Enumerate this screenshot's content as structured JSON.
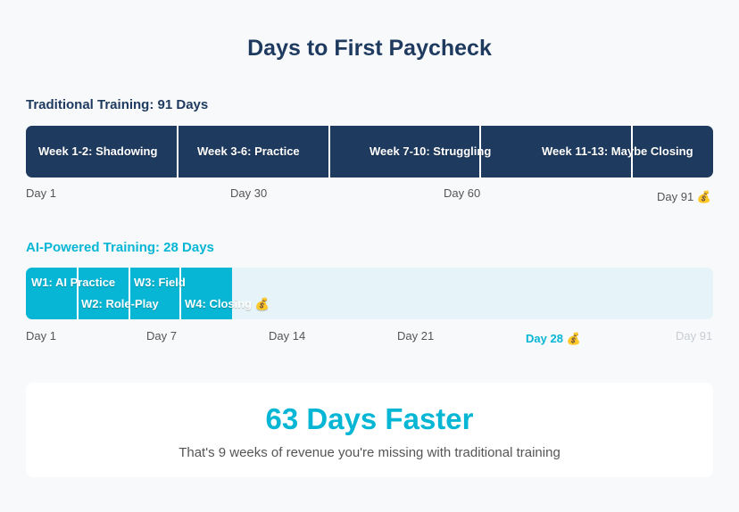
{
  "title": "Days to First Paycheck",
  "traditional": {
    "heading": "Traditional Training: 91 Days",
    "color": "#1e3a5f",
    "phases": [
      "Week 1-2: Shadowing",
      "Week 3-6: Practice",
      "Week 7-10: Struggling",
      "Week 11-13: Maybe Closing"
    ],
    "days": [
      "Day 1",
      "Day 30",
      "Day 60",
      "Day 91 💰"
    ]
  },
  "ai": {
    "heading": "AI-Powered Training: 28 Days",
    "color": "#06b6d4",
    "track_color": "#e6f3f8",
    "phases": [
      "W1: AI Practice",
      "W2: Role-Play",
      "W3: Field",
      "W4: Closing 💰"
    ],
    "days": [
      "Day 1",
      "Day 7",
      "Day 14",
      "Day 21",
      "Day 28 💰",
      "Day 91"
    ]
  },
  "summary": {
    "headline": "63 Days Faster",
    "text": "That's 9 weeks of revenue you're missing with traditional training"
  }
}
